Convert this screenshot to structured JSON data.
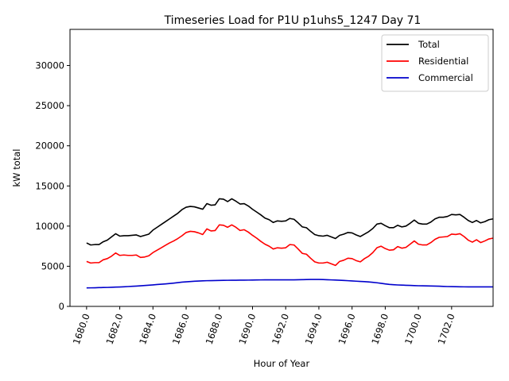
{
  "chart_data": {
    "type": "line",
    "title": "Timeseries Load for P1U p1uhs5_1247  Day 71",
    "xlabel": "Hour of Year",
    "ylabel": "kW total",
    "xlim": [
      1679.0,
      1704.5
    ],
    "ylim": [
      0,
      34500
    ],
    "x_ticks": [
      1680,
      1682,
      1684,
      1686,
      1688,
      1690,
      1692,
      1694,
      1696,
      1698,
      1700,
      1702
    ],
    "x_tick_labels": [
      "1680.0",
      "1682.0",
      "1684.0",
      "1686.0",
      "1688.0",
      "1690.0",
      "1692.0",
      "1694.0",
      "1696.0",
      "1698.0",
      "1700.0",
      "1702.0"
    ],
    "y_ticks": [
      0,
      5000,
      10000,
      15000,
      20000,
      25000,
      30000
    ],
    "y_tick_labels": [
      "0",
      "5000",
      "10000",
      "15000",
      "20000",
      "25000",
      "30000"
    ],
    "grid": false,
    "legend_position": "top-right",
    "x_start": 1680,
    "x_step": 0.25,
    "series": [
      {
        "name": "Total",
        "color": "#000000",
        "values": [
          7900,
          7650,
          7700,
          7700,
          8050,
          8250,
          8650,
          9050,
          8750,
          8800,
          8800,
          8850,
          8900,
          8700,
          8850,
          9000,
          9500,
          9850,
          10200,
          10550,
          10900,
          11250,
          11600,
          12050,
          12350,
          12450,
          12400,
          12250,
          12100,
          12800,
          12600,
          12650,
          13400,
          13350,
          13050,
          13400,
          13100,
          12750,
          12800,
          12500,
          12100,
          11750,
          11400,
          11000,
          10800,
          10450,
          10650,
          10600,
          10650,
          10950,
          10850,
          10400,
          9900,
          9800,
          9350,
          8950,
          8800,
          8750,
          8850,
          8650,
          8450,
          8850,
          9000,
          9200,
          9150,
          8900,
          8700,
          9000,
          9300,
          9700,
          10250,
          10350,
          10050,
          9800,
          9800,
          10100,
          9900,
          10000,
          10350,
          10750,
          10350,
          10250,
          10250,
          10500,
          10900,
          11100,
          11100,
          11200,
          11450,
          11400,
          11450,
          11100,
          10700,
          10450,
          10700,
          10400,
          10550,
          10800,
          10900
        ]
      },
      {
        "name": "Residential",
        "color": "#ff0000",
        "values": [
          5600,
          5400,
          5450,
          5450,
          5800,
          5950,
          6250,
          6650,
          6350,
          6400,
          6350,
          6350,
          6400,
          6100,
          6150,
          6300,
          6700,
          7000,
          7300,
          7600,
          7900,
          8150,
          8450,
          8800,
          9200,
          9350,
          9300,
          9150,
          8950,
          9650,
          9400,
          9450,
          10150,
          10100,
          9850,
          10150,
          9850,
          9450,
          9550,
          9250,
          8850,
          8500,
          8100,
          7750,
          7500,
          7150,
          7300,
          7250,
          7300,
          7700,
          7650,
          7150,
          6600,
          6500,
          6000,
          5550,
          5400,
          5400,
          5500,
          5300,
          5100,
          5600,
          5750,
          6000,
          5950,
          5700,
          5550,
          5950,
          6250,
          6700,
          7300,
          7500,
          7200,
          7000,
          7050,
          7450,
          7250,
          7350,
          7750,
          8150,
          7750,
          7650,
          7650,
          7950,
          8350,
          8600,
          8650,
          8700,
          9000,
          8950,
          9050,
          8700,
          8250,
          8000,
          8300,
          7950,
          8150,
          8400,
          8500
        ]
      },
      {
        "name": "Commercial",
        "color": "#0000cc",
        "values": [
          2300,
          2310,
          2320,
          2340,
          2350,
          2360,
          2380,
          2400,
          2420,
          2440,
          2470,
          2500,
          2530,
          2560,
          2600,
          2640,
          2680,
          2720,
          2760,
          2800,
          2850,
          2900,
          2960,
          3020,
          3060,
          3100,
          3130,
          3160,
          3180,
          3200,
          3210,
          3220,
          3230,
          3240,
          3250,
          3255,
          3260,
          3265,
          3270,
          3275,
          3280,
          3290,
          3300,
          3305,
          3310,
          3310,
          3310,
          3310,
          3310,
          3310,
          3310,
          3320,
          3330,
          3340,
          3350,
          3360,
          3355,
          3340,
          3320,
          3300,
          3280,
          3260,
          3230,
          3200,
          3170,
          3140,
          3110,
          3080,
          3050,
          3000,
          2940,
          2870,
          2800,
          2740,
          2700,
          2670,
          2650,
          2630,
          2610,
          2590,
          2570,
          2560,
          2550,
          2540,
          2530,
          2510,
          2490,
          2470,
          2460,
          2450,
          2440,
          2435,
          2430,
          2430,
          2430,
          2430,
          2430,
          2430,
          2430
        ]
      }
    ]
  }
}
